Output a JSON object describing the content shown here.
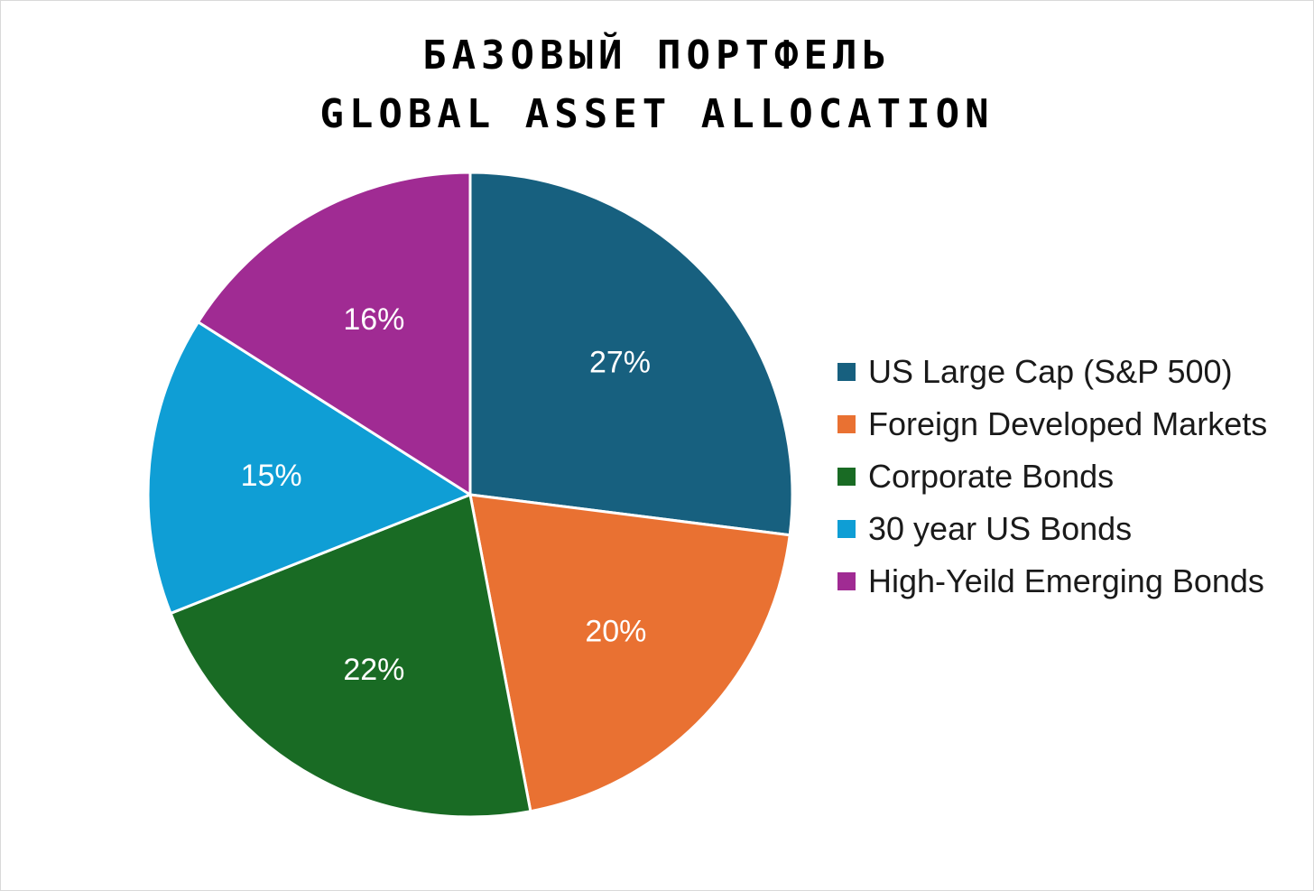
{
  "chart_data": {
    "type": "pie",
    "title": "БАЗОВЫЙ ПОРТФЕЛЬ",
    "subtitle": "GLOBAL ASSET ALLOCATION",
    "legend_position": "right",
    "start_angle": "12 o'clock, clockwise",
    "slices": [
      {
        "label": "US Large Cap (S&P 500)",
        "value": 27,
        "display": "27%",
        "color": "#17607f"
      },
      {
        "label": "Foreign Developed Markets",
        "value": 20,
        "display": "20%",
        "color": "#e97132"
      },
      {
        "label": "Corporate Bonds",
        "value": 22,
        "display": "22%",
        "color": "#196b24"
      },
      {
        "label": "30 year US Bonds",
        "value": 15,
        "display": "15%",
        "color": "#0f9ed5"
      },
      {
        "label": "High-Yeild Emerging Bonds",
        "value": 16,
        "display": "16%",
        "color": "#a02b93"
      }
    ]
  }
}
